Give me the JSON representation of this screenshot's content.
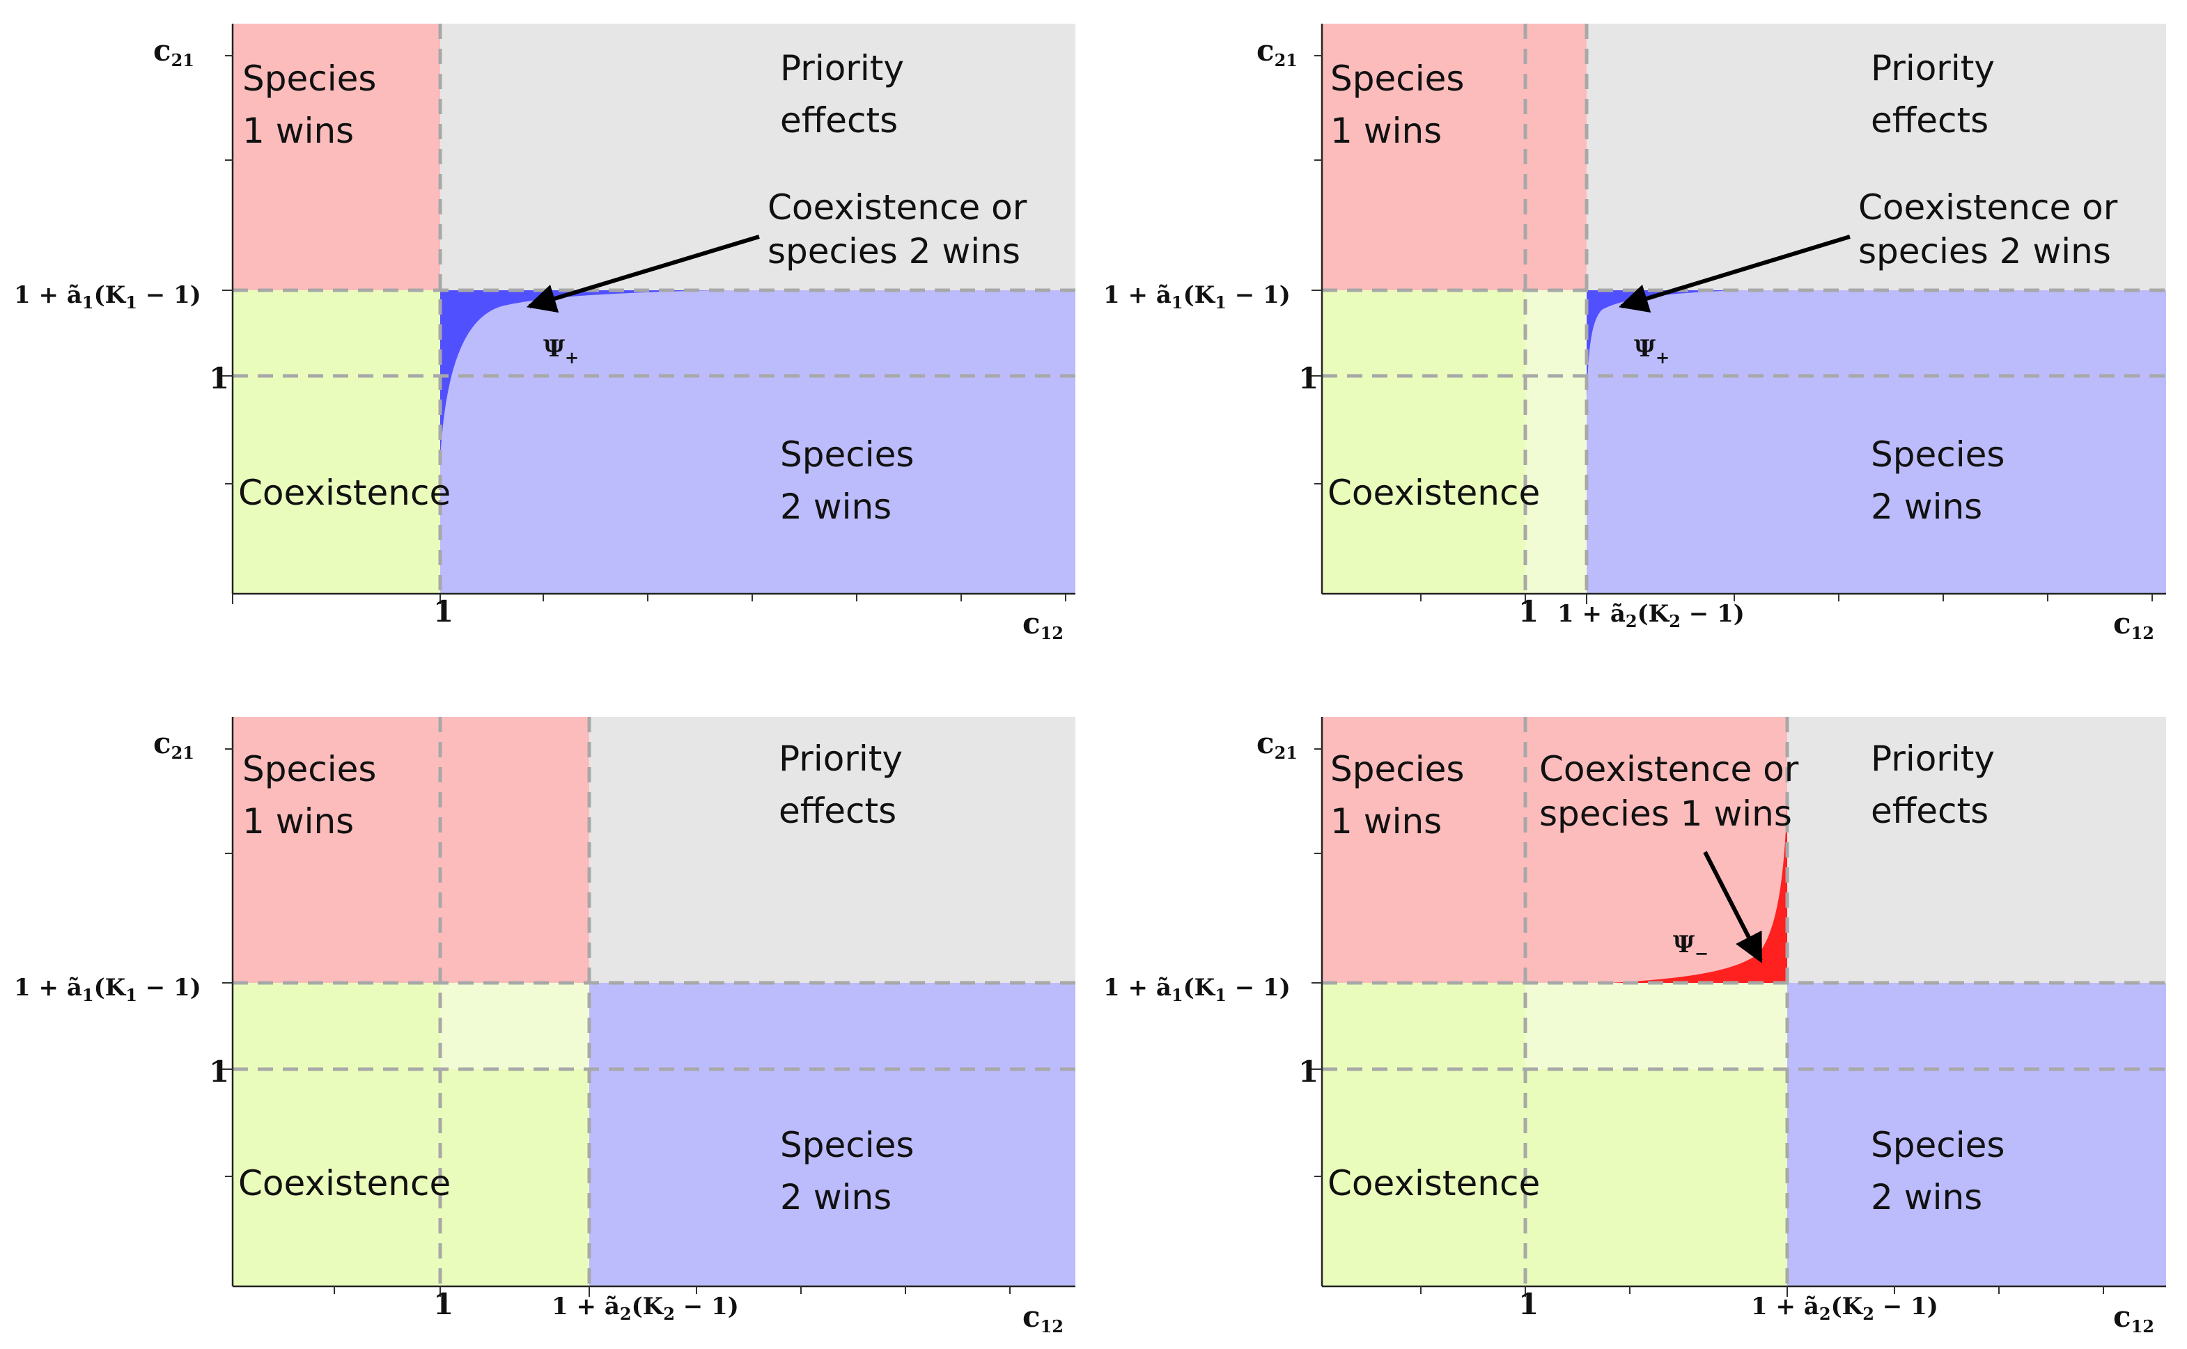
{
  "colors": {
    "species1": "#fcbcbc",
    "priority": "#e6e6e6",
    "coexistence": "#eafcbc",
    "coexistence_light": "#f2fcd4",
    "species2": "#bcbcfc",
    "psi_plus": "#5050ff",
    "psi_minus": "#ff2020"
  },
  "labels": {
    "species1_l1": "Species",
    "species1_l2": "1 wins",
    "priority_l1": "Priority",
    "priority_l2": "effects",
    "coexistence": "Coexistence",
    "species2_l1": "Species",
    "species2_l2": "2 wins",
    "coex_or_s2_l1": "Coexistence or",
    "coex_or_s2_l2": "species 2 wins",
    "coex_or_s1_l1": "Coexistence or",
    "coex_or_s1_l2": "species 1 wins"
  },
  "axes": {
    "y_main": "c",
    "y_sub": "21",
    "x_main": "c",
    "x_sub": "12",
    "one": "1",
    "y_threshold_pre": "1 + ã",
    "y_threshold_sub": "1",
    "y_threshold_post": "(K",
    "y_threshold_post2": " − 1)",
    "x_threshold_pre": "1 + ã",
    "x_threshold_sub": "2",
    "x_threshold_post": "(K",
    "x_threshold_post2": " − 1)"
  },
  "psi": {
    "plus": "Ψ",
    "plus_sub": "+",
    "minus": "Ψ",
    "minus_sub": "−"
  }
}
